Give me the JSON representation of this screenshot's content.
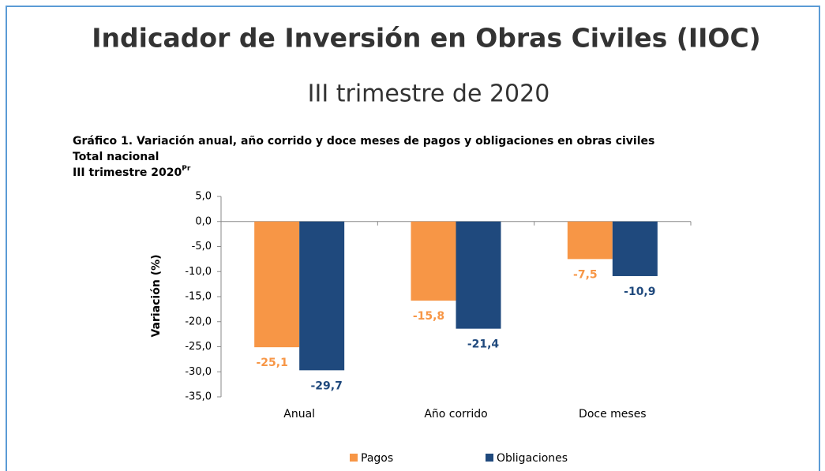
{
  "chart_data": {
    "type": "bar",
    "title": "Indicador de Inversión en Obras Civiles (IIOC)",
    "subtitle": "III trimestre de 2020",
    "chart_title": "Gráfico 1. Variación anual, año corrido y doce meses de pagos y obligaciones en obras civiles",
    "chart_subtitle": "Total nacional",
    "chart_period": "III trimestre 2020",
    "chart_period_sup": "Pr",
    "ylabel": "Variación (%)",
    "categories": [
      "Anual",
      "Año corrido",
      "Doce meses"
    ],
    "series": [
      {
        "name": "Pagos",
        "color": "#f79646",
        "values": [
          -25.1,
          -15.8,
          -7.5
        ],
        "value_labels": [
          "-25,1",
          "-15,8",
          "-7,5"
        ]
      },
      {
        "name": "Obligaciones",
        "color": "#1f497d",
        "values": [
          -29.7,
          -21.4,
          -10.9
        ],
        "value_labels": [
          "-29,7",
          "-21,4",
          "-10,9"
        ]
      }
    ],
    "ylim": [
      -35,
      5
    ],
    "yticks": [
      {
        "value": 5,
        "label": "5,0"
      },
      {
        "value": 0,
        "label": "0,0"
      },
      {
        "value": -5,
        "label": "-5,0"
      },
      {
        "value": -10,
        "label": "-10,0"
      },
      {
        "value": -15,
        "label": "-15,0"
      },
      {
        "value": -20,
        "label": "-20,0"
      },
      {
        "value": -25,
        "label": "-25,0"
      },
      {
        "value": -30,
        "label": "-30,0"
      },
      {
        "value": -35,
        "label": "-35,0"
      }
    ],
    "grid": false,
    "legend": "bottom"
  }
}
